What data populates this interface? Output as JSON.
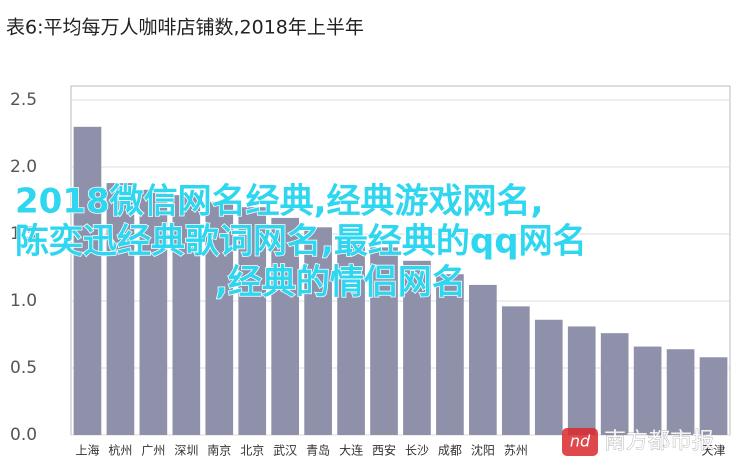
{
  "chart_data": {
    "type": "bar",
    "title": "表6:平均每万人咖啡店铺数,2018年上半年",
    "categories": [
      "上海",
      "杭州",
      "广州",
      "深圳",
      "南京",
      "北京",
      "武汉",
      "青岛",
      "大连",
      "西安",
      "长沙",
      "成都",
      "沈阳",
      "苏州",
      null,
      null,
      null,
      null,
      null,
      "天津"
    ],
    "values": [
      2.3,
      1.88,
      1.83,
      1.79,
      1.74,
      1.7,
      1.62,
      1.55,
      1.46,
      1.4,
      1.3,
      1.2,
      1.12,
      0.96,
      0.86,
      0.81,
      0.76,
      0.66,
      0.64,
      0.58
    ],
    "color": "#8f90aa",
    "ylim": [
      0,
      2.5
    ],
    "yticks": [
      {
        "value": 0,
        "label": "0.0"
      },
      0.5,
      {
        "value": 1,
        "label": "1.0"
      },
      1.5,
      {
        "value": 2,
        "label": "2.0"
      },
      2.5
    ],
    "grid": true
  },
  "overlay": {
    "lines": [
      "2018微信网名经典,经典游戏网名,",
      "陈奕迅经典歌词网名,最经典的qq网名",
      ",经典的情侣网名"
    ],
    "watermark": "南方都市报",
    "logo": "nd"
  }
}
